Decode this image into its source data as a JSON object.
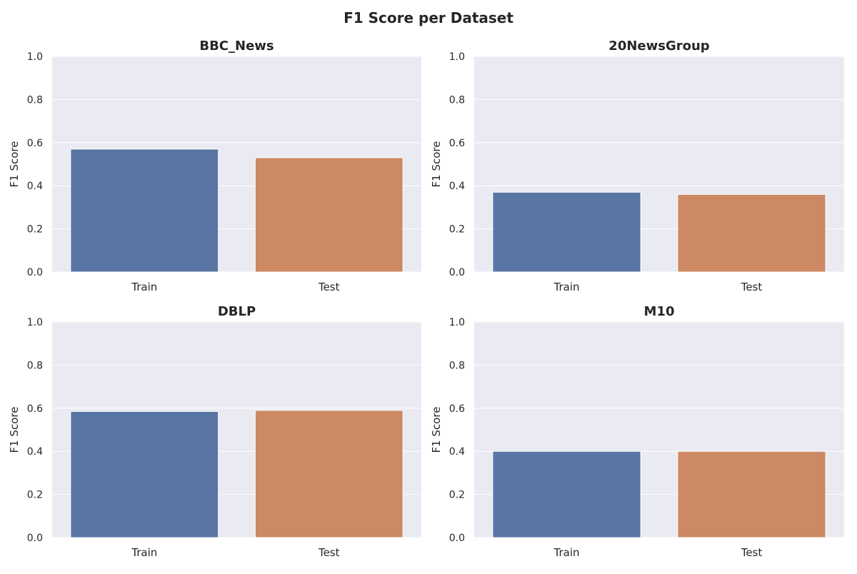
{
  "figure": {
    "title": "F1 Score per Dataset"
  },
  "chart_data": [
    {
      "type": "bar",
      "title": "BBC_News",
      "categories": [
        "Train",
        "Test"
      ],
      "values": [
        0.57,
        0.53
      ],
      "xlabel": "",
      "ylabel": "F1 Score",
      "ylim": [
        0,
        1.0
      ],
      "yticks": [
        "0.0",
        "0.2",
        "0.4",
        "0.6",
        "0.8",
        "1.0"
      ],
      "grid": true
    },
    {
      "type": "bar",
      "title": "20NewsGroup",
      "categories": [
        "Train",
        "Test"
      ],
      "values": [
        0.37,
        0.36
      ],
      "xlabel": "",
      "ylabel": "F1 Score",
      "ylim": [
        0,
        1.0
      ],
      "yticks": [
        "0.0",
        "0.2",
        "0.4",
        "0.6",
        "0.8",
        "1.0"
      ],
      "grid": true
    },
    {
      "type": "bar",
      "title": "DBLP",
      "categories": [
        "Train",
        "Test"
      ],
      "values": [
        0.585,
        0.59
      ],
      "xlabel": "",
      "ylabel": "F1 Score",
      "ylim": [
        0,
        1.0
      ],
      "yticks": [
        "0.0",
        "0.2",
        "0.4",
        "0.6",
        "0.8",
        "1.0"
      ],
      "grid": true
    },
    {
      "type": "bar",
      "title": "M10",
      "categories": [
        "Train",
        "Test"
      ],
      "values": [
        0.4,
        0.4
      ],
      "xlabel": "",
      "ylabel": "F1 Score",
      "ylim": [
        0,
        1.0
      ],
      "yticks": [
        "0.0",
        "0.2",
        "0.4",
        "0.6",
        "0.8",
        "1.0"
      ],
      "grid": true
    }
  ],
  "colors": {
    "bars": [
      "#5975a4",
      "#cc8963"
    ],
    "plot_background": "#eaeaf2",
    "grid": "#ffffff"
  }
}
